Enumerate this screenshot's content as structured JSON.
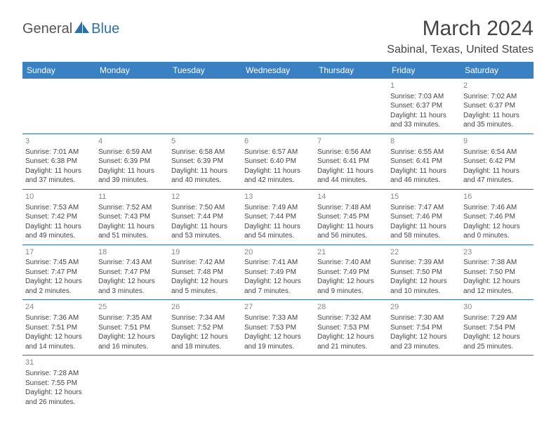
{
  "logo": {
    "part1": "General",
    "part2": "Blue"
  },
  "title": "March 2024",
  "location": "Sabinal, Texas, United States",
  "colors": {
    "header_bg": "#3a81c4",
    "header_text": "#ffffff",
    "border": "#2f6fa8",
    "logo_blue": "#2f6fa8",
    "text": "#444444",
    "daynum": "#888888"
  },
  "weekdays": [
    "Sunday",
    "Monday",
    "Tuesday",
    "Wednesday",
    "Thursday",
    "Friday",
    "Saturday"
  ],
  "weeks": [
    [
      null,
      null,
      null,
      null,
      null,
      {
        "n": "1",
        "sr": "Sunrise: 7:03 AM",
        "ss": "Sunset: 6:37 PM",
        "dl1": "Daylight: 11 hours",
        "dl2": "and 33 minutes."
      },
      {
        "n": "2",
        "sr": "Sunrise: 7:02 AM",
        "ss": "Sunset: 6:37 PM",
        "dl1": "Daylight: 11 hours",
        "dl2": "and 35 minutes."
      }
    ],
    [
      {
        "n": "3",
        "sr": "Sunrise: 7:01 AM",
        "ss": "Sunset: 6:38 PM",
        "dl1": "Daylight: 11 hours",
        "dl2": "and 37 minutes."
      },
      {
        "n": "4",
        "sr": "Sunrise: 6:59 AM",
        "ss": "Sunset: 6:39 PM",
        "dl1": "Daylight: 11 hours",
        "dl2": "and 39 minutes."
      },
      {
        "n": "5",
        "sr": "Sunrise: 6:58 AM",
        "ss": "Sunset: 6:39 PM",
        "dl1": "Daylight: 11 hours",
        "dl2": "and 40 minutes."
      },
      {
        "n": "6",
        "sr": "Sunrise: 6:57 AM",
        "ss": "Sunset: 6:40 PM",
        "dl1": "Daylight: 11 hours",
        "dl2": "and 42 minutes."
      },
      {
        "n": "7",
        "sr": "Sunrise: 6:56 AM",
        "ss": "Sunset: 6:41 PM",
        "dl1": "Daylight: 11 hours",
        "dl2": "and 44 minutes."
      },
      {
        "n": "8",
        "sr": "Sunrise: 6:55 AM",
        "ss": "Sunset: 6:41 PM",
        "dl1": "Daylight: 11 hours",
        "dl2": "and 46 minutes."
      },
      {
        "n": "9",
        "sr": "Sunrise: 6:54 AM",
        "ss": "Sunset: 6:42 PM",
        "dl1": "Daylight: 11 hours",
        "dl2": "and 47 minutes."
      }
    ],
    [
      {
        "n": "10",
        "sr": "Sunrise: 7:53 AM",
        "ss": "Sunset: 7:42 PM",
        "dl1": "Daylight: 11 hours",
        "dl2": "and 49 minutes."
      },
      {
        "n": "11",
        "sr": "Sunrise: 7:52 AM",
        "ss": "Sunset: 7:43 PM",
        "dl1": "Daylight: 11 hours",
        "dl2": "and 51 minutes."
      },
      {
        "n": "12",
        "sr": "Sunrise: 7:50 AM",
        "ss": "Sunset: 7:44 PM",
        "dl1": "Daylight: 11 hours",
        "dl2": "and 53 minutes."
      },
      {
        "n": "13",
        "sr": "Sunrise: 7:49 AM",
        "ss": "Sunset: 7:44 PM",
        "dl1": "Daylight: 11 hours",
        "dl2": "and 54 minutes."
      },
      {
        "n": "14",
        "sr": "Sunrise: 7:48 AM",
        "ss": "Sunset: 7:45 PM",
        "dl1": "Daylight: 11 hours",
        "dl2": "and 56 minutes."
      },
      {
        "n": "15",
        "sr": "Sunrise: 7:47 AM",
        "ss": "Sunset: 7:46 PM",
        "dl1": "Daylight: 11 hours",
        "dl2": "and 58 minutes."
      },
      {
        "n": "16",
        "sr": "Sunrise: 7:46 AM",
        "ss": "Sunset: 7:46 PM",
        "dl1": "Daylight: 12 hours",
        "dl2": "and 0 minutes."
      }
    ],
    [
      {
        "n": "17",
        "sr": "Sunrise: 7:45 AM",
        "ss": "Sunset: 7:47 PM",
        "dl1": "Daylight: 12 hours",
        "dl2": "and 2 minutes."
      },
      {
        "n": "18",
        "sr": "Sunrise: 7:43 AM",
        "ss": "Sunset: 7:47 PM",
        "dl1": "Daylight: 12 hours",
        "dl2": "and 3 minutes."
      },
      {
        "n": "19",
        "sr": "Sunrise: 7:42 AM",
        "ss": "Sunset: 7:48 PM",
        "dl1": "Daylight: 12 hours",
        "dl2": "and 5 minutes."
      },
      {
        "n": "20",
        "sr": "Sunrise: 7:41 AM",
        "ss": "Sunset: 7:49 PM",
        "dl1": "Daylight: 12 hours",
        "dl2": "and 7 minutes."
      },
      {
        "n": "21",
        "sr": "Sunrise: 7:40 AM",
        "ss": "Sunset: 7:49 PM",
        "dl1": "Daylight: 12 hours",
        "dl2": "and 9 minutes."
      },
      {
        "n": "22",
        "sr": "Sunrise: 7:39 AM",
        "ss": "Sunset: 7:50 PM",
        "dl1": "Daylight: 12 hours",
        "dl2": "and 10 minutes."
      },
      {
        "n": "23",
        "sr": "Sunrise: 7:38 AM",
        "ss": "Sunset: 7:50 PM",
        "dl1": "Daylight: 12 hours",
        "dl2": "and 12 minutes."
      }
    ],
    [
      {
        "n": "24",
        "sr": "Sunrise: 7:36 AM",
        "ss": "Sunset: 7:51 PM",
        "dl1": "Daylight: 12 hours",
        "dl2": "and 14 minutes."
      },
      {
        "n": "25",
        "sr": "Sunrise: 7:35 AM",
        "ss": "Sunset: 7:51 PM",
        "dl1": "Daylight: 12 hours",
        "dl2": "and 16 minutes."
      },
      {
        "n": "26",
        "sr": "Sunrise: 7:34 AM",
        "ss": "Sunset: 7:52 PM",
        "dl1": "Daylight: 12 hours",
        "dl2": "and 18 minutes."
      },
      {
        "n": "27",
        "sr": "Sunrise: 7:33 AM",
        "ss": "Sunset: 7:53 PM",
        "dl1": "Daylight: 12 hours",
        "dl2": "and 19 minutes."
      },
      {
        "n": "28",
        "sr": "Sunrise: 7:32 AM",
        "ss": "Sunset: 7:53 PM",
        "dl1": "Daylight: 12 hours",
        "dl2": "and 21 minutes."
      },
      {
        "n": "29",
        "sr": "Sunrise: 7:30 AM",
        "ss": "Sunset: 7:54 PM",
        "dl1": "Daylight: 12 hours",
        "dl2": "and 23 minutes."
      },
      {
        "n": "30",
        "sr": "Sunrise: 7:29 AM",
        "ss": "Sunset: 7:54 PM",
        "dl1": "Daylight: 12 hours",
        "dl2": "and 25 minutes."
      }
    ],
    [
      {
        "n": "31",
        "sr": "Sunrise: 7:28 AM",
        "ss": "Sunset: 7:55 PM",
        "dl1": "Daylight: 12 hours",
        "dl2": "and 26 minutes."
      },
      null,
      null,
      null,
      null,
      null,
      null
    ]
  ]
}
